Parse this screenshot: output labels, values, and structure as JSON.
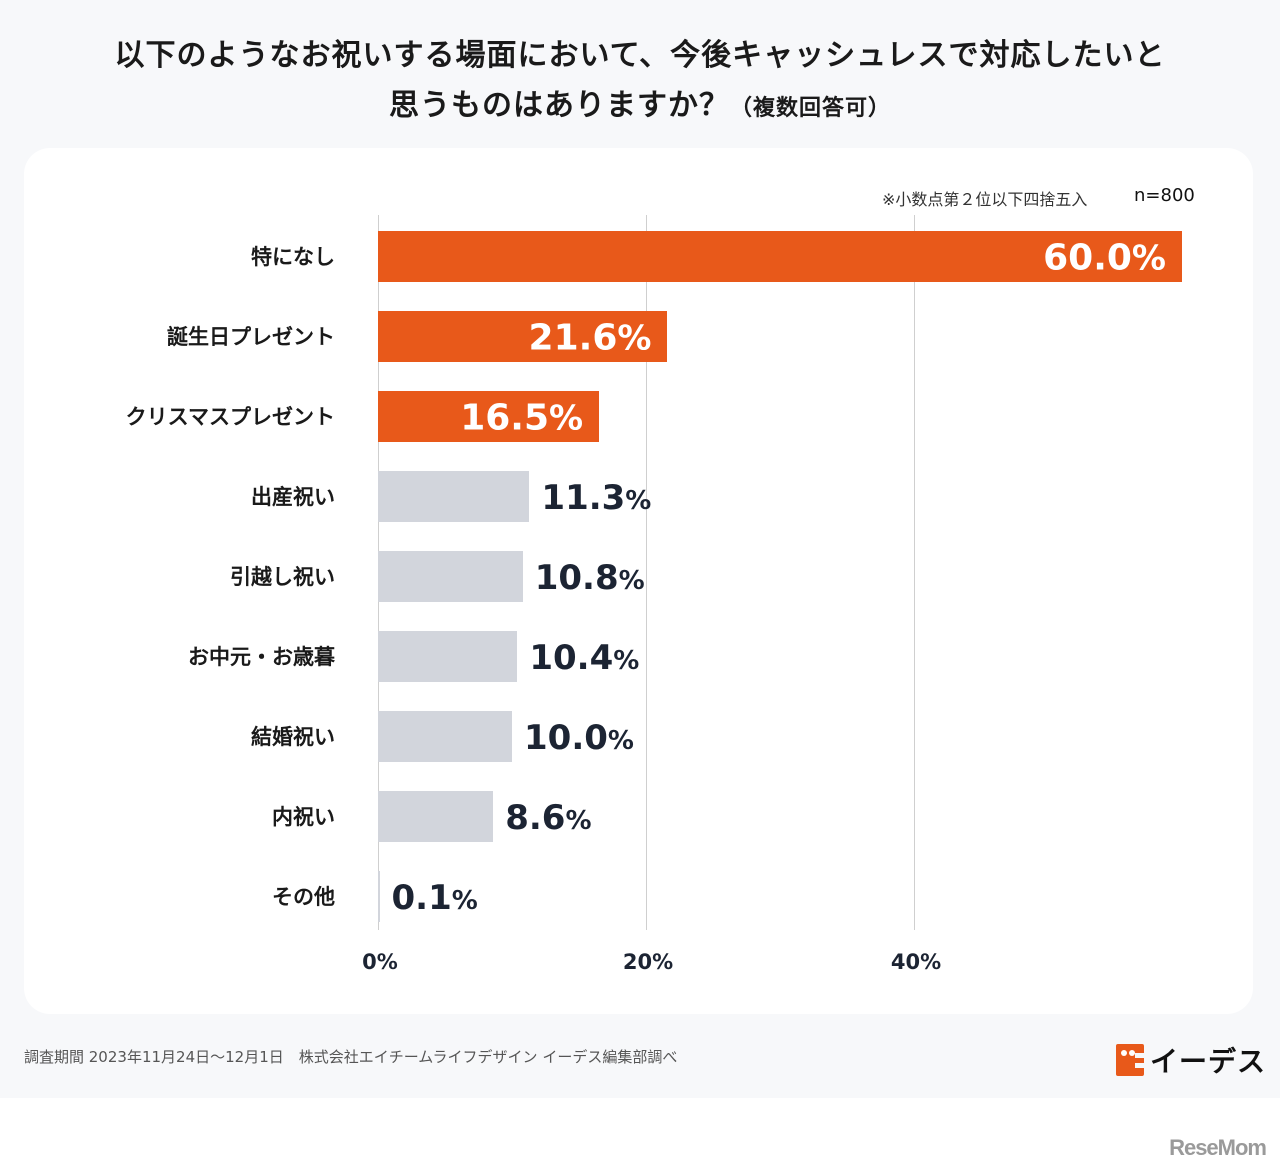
{
  "header": {
    "title_line1": "以下のようなお祝いする場面において、今後キャッシュレスで対応したいと",
    "title_line2": "思うものはありますか？",
    "title_sub": "（複数回答可）"
  },
  "notes": {
    "rounding": "※小数点第２位以下四捨五入",
    "sample": "n=800"
  },
  "footer": {
    "source": "調査期間 2023年11月24日〜12月1日　株式会社エイチームライフデザイン イーデス編集部調べ",
    "logo_text": "イーデス",
    "watermark": "ReseMom"
  },
  "colors": {
    "highlight": "#e8591a",
    "muted": "#d2d5dc",
    "value_dark": "#1c2433"
  },
  "chart_data": {
    "type": "bar",
    "orientation": "horizontal",
    "title": "以下のようなお祝いする場面において、今後キャッシュレスで対応したいと思うものはありますか？（複数回答可）",
    "xlabel": "",
    "ylabel": "",
    "xlim": [
      0,
      60
    ],
    "grid": true,
    "x_ticks": [
      0,
      20,
      40
    ],
    "x_tick_labels": [
      "0%",
      "20%",
      "40%"
    ],
    "categories": [
      "特になし",
      "誕生日プレゼント",
      "クリスマスプレゼント",
      "出産祝い",
      "引越し祝い",
      "お中元・お歳暮",
      "結婚祝い",
      "内祝い",
      "その他"
    ],
    "values": [
      60.0,
      21.6,
      16.5,
      11.3,
      10.8,
      10.4,
      10.0,
      8.6,
      0.1
    ],
    "value_labels": [
      "60.0",
      "21.6",
      "16.5",
      "11.3",
      "10.8",
      "10.4",
      "10.0",
      "8.6",
      "0.1"
    ],
    "highlighted": [
      true,
      true,
      true,
      false,
      false,
      false,
      false,
      false,
      false
    ],
    "unit": "%",
    "n": 800
  }
}
